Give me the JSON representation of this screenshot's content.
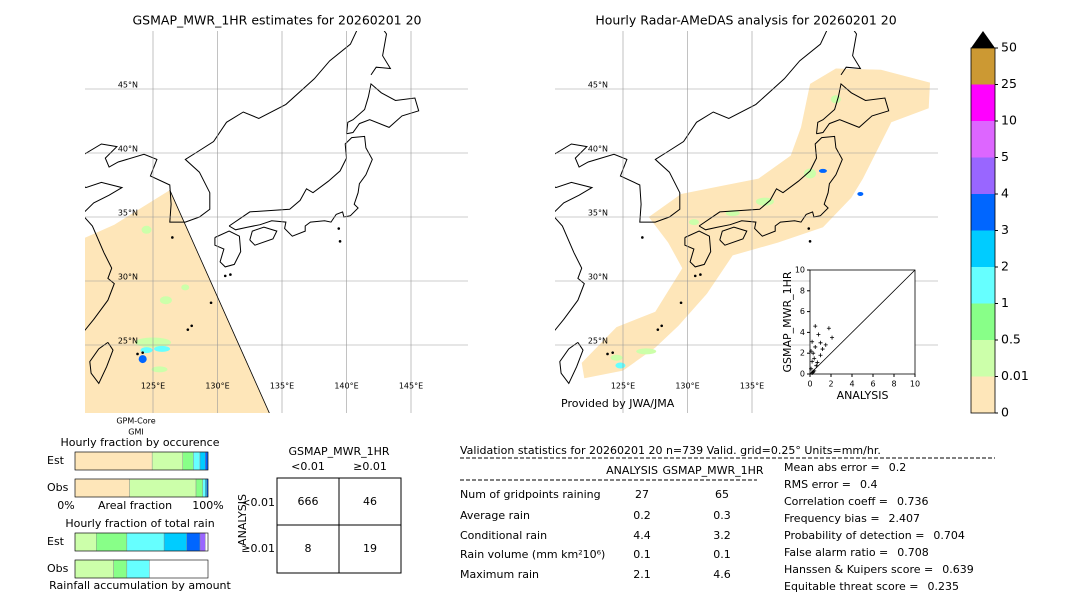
{
  "left_map": {
    "title": "GSMAP_MWR_1HR estimates for 20260201 20",
    "lat_labels": [
      {
        "value": 45,
        "label": "45°N"
      },
      {
        "value": 40,
        "label": "40°N"
      },
      {
        "value": 35,
        "label": "35°N"
      },
      {
        "value": 30,
        "label": "30°N"
      },
      {
        "value": 25,
        "label": "25°N"
      }
    ],
    "lon_labels": [
      {
        "value": 125,
        "label": "125°E"
      },
      {
        "value": 130,
        "label": "130°E"
      },
      {
        "value": 135,
        "label": "135°E"
      },
      {
        "value": 140,
        "label": "140°E"
      },
      {
        "value": 145,
        "label": "145°E"
      }
    ],
    "satellite": [
      "GPM-Core",
      "GMI"
    ]
  },
  "right_map": {
    "title": "Hourly Radar-AMeDAS analysis for 20260201 20",
    "lat_labels": [
      {
        "value": 45,
        "label": "45°N"
      },
      {
        "value": 40,
        "label": "40°N"
      },
      {
        "value": 35,
        "label": "35°N"
      },
      {
        "value": 30,
        "label": "30°N"
      },
      {
        "value": 25,
        "label": "25°N"
      }
    ],
    "lon_labels": [
      {
        "value": 125,
        "label": "125°E"
      },
      {
        "value": 130,
        "label": "130°E"
      },
      {
        "value": 135,
        "label": "135°E"
      }
    ],
    "credit": "Provided by JWA/JMA"
  },
  "colorbar": {
    "levels": [
      0,
      0.01,
      0.5,
      1,
      2,
      3,
      4,
      5,
      10,
      25,
      50
    ],
    "colors": [
      "#fee6b9",
      "#ccffaa",
      "#88ff88",
      "#66ffff",
      "#00ccff",
      "#0066ff",
      "#9966ff",
      "#dd66ff",
      "#ff00ff",
      "#cc9933"
    ]
  },
  "scatter": {
    "x_label": "ANALYSIS",
    "y_label": "GSMAP_MWR_1HR",
    "xlim": [
      0,
      10
    ],
    "ylim": [
      0,
      10
    ],
    "xticks": [
      0,
      2,
      4,
      6,
      8,
      10
    ],
    "yticks": [
      0,
      2,
      4,
      6,
      8,
      10
    ],
    "x": [
      0.1,
      0.2,
      0.3,
      0.2,
      0.5,
      0.4,
      0.8,
      1.0,
      0.6,
      0.3,
      1.2,
      1.5,
      1.8,
      0.2,
      0.5,
      1.0,
      2.1,
      0.1,
      0.7,
      0.4
    ],
    "y": [
      0.5,
      1.2,
      2.0,
      3.1,
      2.6,
      1.5,
      3.8,
      3.0,
      0.8,
      0.2,
      2.4,
      2.8,
      4.4,
      0.1,
      4.6,
      1.8,
      3.5,
      2.2,
      1.1,
      0.3
    ]
  },
  "occurrence": {
    "title": "Hourly fraction by occurence",
    "rows": [
      "Est",
      "Obs"
    ],
    "axis_labels": [
      "0%",
      "Areal fraction",
      "100%"
    ],
    "colors": [
      "#fee6b9",
      "#ccffaa",
      "#88ff88",
      "#66ffff",
      "#00ccff",
      "#0066ff"
    ],
    "est": [
      58,
      23,
      8,
      5,
      4,
      2
    ],
    "obs": [
      41,
      50,
      5,
      2,
      1,
      1
    ]
  },
  "total_rain": {
    "title": "Hourly fraction of total rain",
    "rows": [
      "Est",
      "Obs"
    ],
    "caption": "Rainfall accumulation by amount",
    "colors": [
      "#ccffaa",
      "#88ff88",
      "#66ffff",
      "#00ccff",
      "#0066ff",
      "#9966ff"
    ],
    "est": [
      16,
      23,
      28,
      17,
      10,
      4
    ],
    "obs": [
      29,
      10,
      17,
      0,
      0,
      0
    ]
  },
  "contingency": {
    "title": "GSMAP_MWR_1HR",
    "col_labels": [
      "<0.01",
      "≥0.01"
    ],
    "row_title": "ANALYSIS",
    "row_labels": [
      "<0.01",
      "≥0.01"
    ],
    "cells": [
      [
        666,
        46
      ],
      [
        8,
        19
      ]
    ]
  },
  "validation": {
    "header": "Validation statistics for 20260201 20  n=739 Valid. grid=0.25° Units=mm/hr.",
    "columns": [
      "ANALYSIS",
      "GSMAP_MWR_1HR"
    ],
    "rows": [
      {
        "label": "Num of gridpoints raining",
        "analysis": 27,
        "gsmap": 65
      },
      {
        "label": "Average rain",
        "analysis": 0.2,
        "gsmap": 0.3
      },
      {
        "label": "Conditional rain",
        "analysis": 4.4,
        "gsmap": 3.2
      },
      {
        "label": "Rain volume (mm km²10⁶)",
        "analysis": 0.1,
        "gsmap": 0.1
      },
      {
        "label": "Maximum rain",
        "analysis": 2.1,
        "gsmap": 4.6
      }
    ]
  },
  "scores": [
    {
      "label": "Mean abs error =",
      "value": 0.2
    },
    {
      "label": "RMS error =",
      "value": 0.4
    },
    {
      "label": "Correlation coeff =",
      "value": 0.736
    },
    {
      "label": "Frequency bias =",
      "value": 2.407
    },
    {
      "label": "Probability of detection =",
      "value": 0.704
    },
    {
      "label": "False alarm ratio =",
      "value": 0.708
    },
    {
      "label": "Hanssen & Kuipers score =",
      "value": 0.639
    },
    {
      "label": "Equitable threat score =",
      "value": 0.235
    }
  ]
}
